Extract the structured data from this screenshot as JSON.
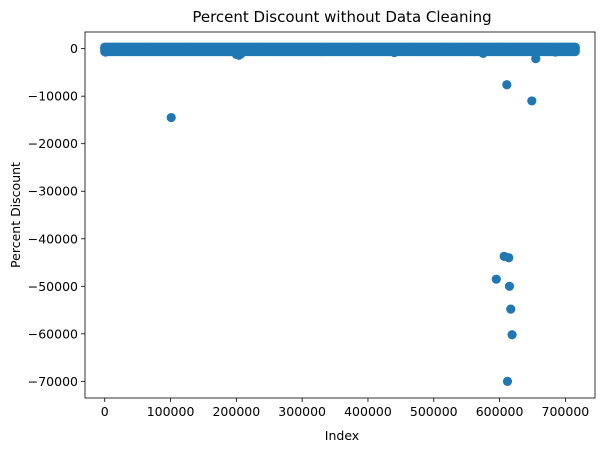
{
  "chart_data": {
    "type": "scatter",
    "title": "Percent Discount without Data Cleaning",
    "xlabel": "Index",
    "ylabel": "Percent Discount",
    "xlim": [
      -30000,
      745000
    ],
    "ylim": [
      -73500,
      3500
    ],
    "xticks": [
      0,
      100000,
      200000,
      300000,
      400000,
      500000,
      600000,
      700000
    ],
    "yticks": [
      0,
      -10000,
      -20000,
      -30000,
      -40000,
      -50000,
      -60000,
      -70000
    ],
    "grid": false,
    "legend": "none",
    "color": "#1f77b4",
    "band": {
      "x_start": 0,
      "x_end": 715000,
      "y_top": 300,
      "y_bottom": -600
    },
    "points": [
      {
        "x": 1000,
        "y": -700
      },
      {
        "x": 3000,
        "y": -400
      },
      {
        "x": 20000,
        "y": -300
      },
      {
        "x": 60000,
        "y": -250
      },
      {
        "x": 101000,
        "y": -14500
      },
      {
        "x": 130000,
        "y": -300
      },
      {
        "x": 200000,
        "y": -1200
      },
      {
        "x": 204000,
        "y": -1400
      },
      {
        "x": 207000,
        "y": -1100
      },
      {
        "x": 240000,
        "y": -300
      },
      {
        "x": 330000,
        "y": -600
      },
      {
        "x": 380000,
        "y": -200
      },
      {
        "x": 440000,
        "y": -800
      },
      {
        "x": 470000,
        "y": -300
      },
      {
        "x": 520000,
        "y": -200
      },
      {
        "x": 560000,
        "y": -400
      },
      {
        "x": 575000,
        "y": -1000
      },
      {
        "x": 595000,
        "y": -48500
      },
      {
        "x": 603000,
        "y": -300
      },
      {
        "x": 607000,
        "y": -43700
      },
      {
        "x": 611000,
        "y": -7600
      },
      {
        "x": 612000,
        "y": -70000
      },
      {
        "x": 614000,
        "y": -44000
      },
      {
        "x": 615000,
        "y": -50000
      },
      {
        "x": 617000,
        "y": -54800
      },
      {
        "x": 619000,
        "y": -60200
      },
      {
        "x": 640000,
        "y": -500
      },
      {
        "x": 649000,
        "y": -11000
      },
      {
        "x": 655000,
        "y": -2100
      },
      {
        "x": 660000,
        "y": -600
      },
      {
        "x": 685000,
        "y": -700
      },
      {
        "x": 700000,
        "y": -300
      },
      {
        "x": 712000,
        "y": -200
      }
    ]
  }
}
